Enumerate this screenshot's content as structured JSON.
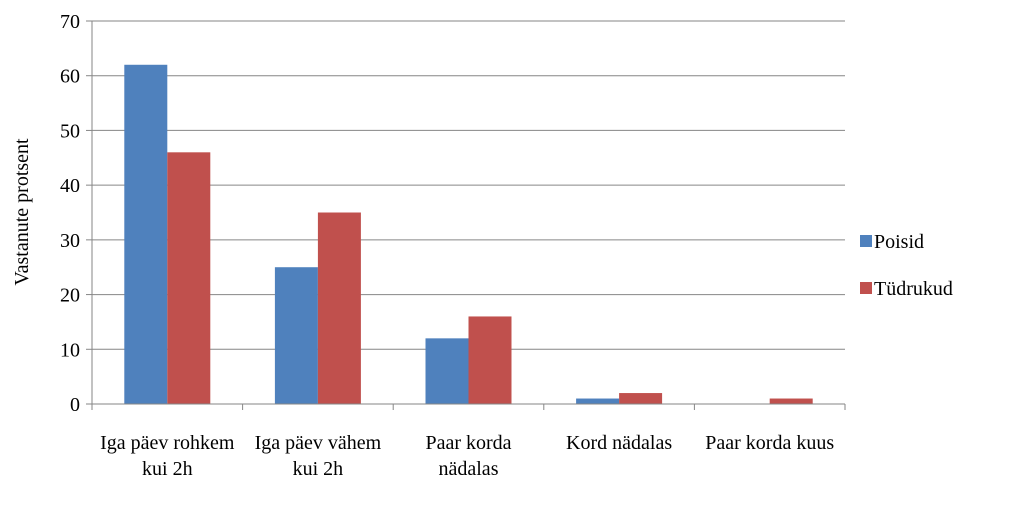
{
  "chart_data": {
    "type": "bar",
    "y_label": "Vastanute protsent",
    "categories": [
      "Iga päev rohkem kui 2h",
      "Iga päev vähem kui 2h",
      "Paar korda nädalas",
      "Kord nädalas",
      "Paar korda kuus"
    ],
    "series": [
      {
        "name": "Poisid",
        "color": "#4f81bd",
        "values": [
          62,
          25,
          12,
          1,
          0
        ]
      },
      {
        "name": "Tüdrukud",
        "color": "#c0504d",
        "values": [
          46,
          35,
          16,
          2,
          1
        ]
      }
    ],
    "ylim": [
      0,
      70
    ],
    "yticks": [
      0,
      10,
      20,
      30,
      40,
      50,
      60,
      70
    ],
    "grid": true,
    "legend": "right"
  }
}
